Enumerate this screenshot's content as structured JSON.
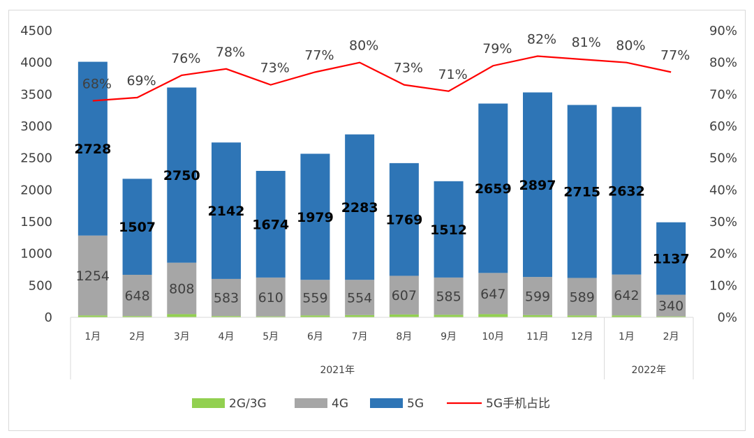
{
  "chart_data": {
    "type": "bar",
    "stacked": true,
    "categories": [
      "1月",
      "2月",
      "3月",
      "4月",
      "5月",
      "6月",
      "7月",
      "8月",
      "9月",
      "10月",
      "11月",
      "12月",
      "1月",
      "2月"
    ],
    "year_groups": [
      {
        "label": "2021年",
        "count": 12
      },
      {
        "label": "2022年",
        "count": 2
      }
    ],
    "series": [
      {
        "name": "2G/3G",
        "color": "#92d050",
        "values": [
          30,
          20,
          50,
          20,
          15,
          30,
          35,
          45,
          40,
          50,
          35,
          30,
          30,
          15
        ]
      },
      {
        "name": "4G",
        "color": "#a6a6a6",
        "values": [
          1254,
          648,
          808,
          583,
          610,
          559,
          554,
          607,
          585,
          647,
          599,
          589,
          642,
          340
        ]
      },
      {
        "name": "5G",
        "color": "#2e75b6",
        "values": [
          2728,
          1507,
          2750,
          2142,
          1674,
          1979,
          2283,
          1769,
          1512,
          2659,
          2897,
          2715,
          2632,
          1137
        ]
      }
    ],
    "line_series": {
      "name": "5G手机占比",
      "color": "#ff0000",
      "values": [
        68,
        69,
        76,
        78,
        73,
        77,
        80,
        73,
        71,
        79,
        82,
        81,
        80,
        77
      ],
      "labels": [
        "68%",
        "69%",
        "76%",
        "78%",
        "73%",
        "77%",
        "80%",
        "73%",
        "71%",
        "79%",
        "82%",
        "81%",
        "80%",
        "77%"
      ]
    },
    "y_left": {
      "min": 0,
      "max": 4500,
      "step": 500,
      "ticks": [
        "0",
        "500",
        "1000",
        "1500",
        "2000",
        "2500",
        "3000",
        "3500",
        "4000",
        "4500"
      ]
    },
    "y_right": {
      "min": 0,
      "max": 90,
      "step": 10,
      "ticks": [
        "0%",
        "10%",
        "20%",
        "30%",
        "40%",
        "50%",
        "60%",
        "70%",
        "80%",
        "90%"
      ]
    },
    "legend": {
      "position": "bottom",
      "items": [
        "2G/3G",
        "4G",
        "5G",
        "5G手机占比"
      ]
    },
    "grid": false
  }
}
